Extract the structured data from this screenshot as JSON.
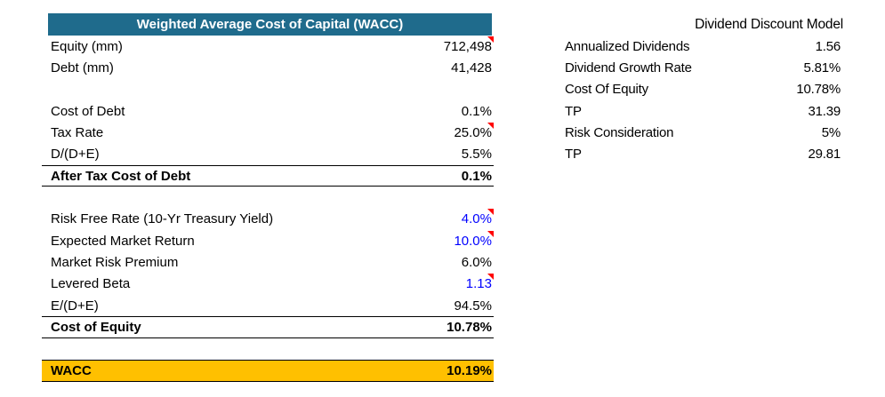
{
  "colors": {
    "header_bg": "#1F6B8C",
    "header_text": "#FFFFFF",
    "input_blue": "#0000FF",
    "comment_red": "#FF0000",
    "total_bg": "#FFC000",
    "text": "#000000",
    "background": "#FFFFFF"
  },
  "wacc_table": {
    "title": "Weighted Average Cost of Capital (WACC)",
    "rows": [
      {
        "label": "Equity (mm)",
        "value": "712,498",
        "comment": true
      },
      {
        "label": "Debt (mm)",
        "value": "41,428"
      },
      {
        "blank": true
      },
      {
        "label": "Cost of Debt",
        "value": "0.1%"
      },
      {
        "label": "Tax Rate",
        "value": "25.0%",
        "comment": true
      },
      {
        "label": "D/(D+E)",
        "value": "5.5%"
      },
      {
        "label": "After Tax Cost of Debt",
        "value": "0.1%",
        "style": "subtotal"
      },
      {
        "blank": true
      },
      {
        "label": "Risk Free Rate (10-Yr Treasury Yield)",
        "value": "4.0%",
        "blue": true,
        "comment": true
      },
      {
        "label": "Expected Market Return",
        "value": "10.0%",
        "blue": true,
        "comment": true
      },
      {
        "label": "Market Risk Premium",
        "value": "6.0%"
      },
      {
        "label": "Levered Beta",
        "value": "1.13",
        "blue": true,
        "comment": true
      },
      {
        "label": "E/(D+E)",
        "value": "94.5%"
      },
      {
        "label": "Cost of Equity",
        "value": "10.78%",
        "style": "subtotal"
      },
      {
        "blank": true
      },
      {
        "label": "WACC",
        "value": "10.19%",
        "style": "total"
      }
    ]
  },
  "ddm_table": {
    "title": "Dividend Discount Model",
    "rows": [
      {
        "label": "Annualized Dividends",
        "value": "1.56"
      },
      {
        "label": "Dividend Growth Rate",
        "value": "5.81%"
      },
      {
        "label": "Cost Of Equity",
        "value": "10.78%"
      },
      {
        "label": "TP",
        "value": "31.39"
      },
      {
        "label": "Risk Consideration",
        "value": "5%"
      },
      {
        "label": "TP",
        "value": "29.81"
      }
    ]
  }
}
